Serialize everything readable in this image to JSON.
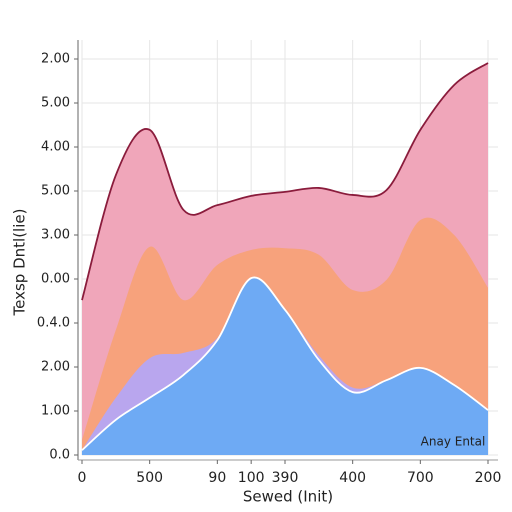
{
  "chart_data": {
    "type": "stacked_area",
    "ylabel": "Texsp Dntl(lie)",
    "xlabel": "Sewed (Init)",
    "annotation": "Anay Ental",
    "x": [
      0,
      0.5,
      1,
      1.5,
      2,
      2.5,
      3,
      3.5,
      4,
      4.5,
      5,
      5.5,
      6
    ],
    "xlim": [
      0,
      6
    ],
    "xticks": [
      {
        "value": 0,
        "label": "0"
      },
      {
        "value": 1,
        "label": "500"
      },
      {
        "value": 2,
        "label": "90"
      },
      {
        "value": 2.5,
        "label": "100"
      },
      {
        "value": 3,
        "label": "390"
      },
      {
        "value": 4,
        "label": "400"
      },
      {
        "value": 5,
        "label": "700"
      },
      {
        "value": 6,
        "label": "200"
      }
    ],
    "ylim": [
      0,
      9
    ],
    "yticks": [
      {
        "value": 0,
        "label": "0.0"
      },
      {
        "value": 1,
        "label": "1.00"
      },
      {
        "value": 2,
        "label": "2.00"
      },
      {
        "value": 3,
        "label": "0.4.0"
      },
      {
        "value": 4,
        "label": "0.00"
      },
      {
        "value": 5,
        "label": "3.00"
      },
      {
        "value": 6,
        "label": "5.00"
      },
      {
        "value": 7,
        "label": "4.00"
      },
      {
        "value": 8,
        "label": "5.00"
      },
      {
        "value": 9,
        "label": "2.00"
      }
    ],
    "grid": true,
    "series": [
      {
        "color": "#6eaaf4",
        "line": "#ffffff",
        "values": [
          0.11,
          0.8,
          1.3,
          1.82,
          2.61,
          4.02,
          3.3,
          2.16,
          1.43,
          1.7,
          1.98,
          1.59,
          1.02
        ]
      },
      {
        "color": "#b9a6ee",
        "values": [
          0,
          0.5,
          0.9,
          0.5,
          0.05,
          0,
          0,
          0.1,
          0.1,
          0,
          0,
          0,
          0
        ]
      },
      {
        "color": "#f7a27c",
        "values": [
          0.23,
          1.54,
          2.53,
          1.2,
          1.66,
          0.64,
          1.4,
          2.29,
          2.22,
          2.28,
          3.36,
          3.41,
          2.78
        ]
      },
      {
        "color": "#f0a6ba",
        "line": "#8a1c3c",
        "values": [
          3.18,
          3.52,
          2.66,
          2.05,
          1.36,
          1.23,
          1.28,
          1.52,
          2.16,
          2.04,
          2.05,
          3.41,
          5.11
        ]
      }
    ]
  }
}
